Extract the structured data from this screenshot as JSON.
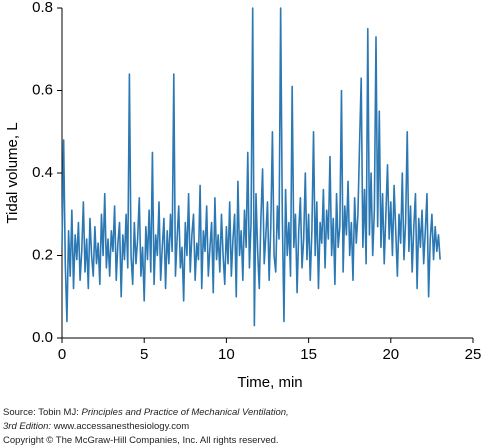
{
  "chart_data": {
    "type": "line",
    "xlabel": "Time, min",
    "ylabel": "Tidal volume, L",
    "xlim": [
      0,
      25
    ],
    "ylim": [
      0,
      0.8
    ],
    "xticks": [
      0,
      5,
      10,
      15,
      20,
      25
    ],
    "yticks": [
      {
        "value": 0,
        "label": "0.0"
      },
      0.2,
      0.4,
      0.6,
      0.8
    ],
    "series": [
      {
        "name": "Tidal volume",
        "color": "#2b78b3",
        "x": [
          0,
          0.1,
          0.2,
          0.3,
          0.4,
          0.5,
          0.6,
          0.7,
          0.8,
          0.9,
          1,
          1.1,
          1.2,
          1.3,
          1.4,
          1.5,
          1.6,
          1.7,
          1.8,
          1.9,
          2,
          2.1,
          2.2,
          2.3,
          2.4,
          2.5,
          2.6,
          2.7,
          2.8,
          2.9,
          3,
          3.1,
          3.2,
          3.3,
          3.4,
          3.5,
          3.6,
          3.7,
          3.8,
          3.9,
          4,
          4.1,
          4.2,
          4.3,
          4.4,
          4.5,
          4.6,
          4.7,
          4.8,
          4.9,
          5,
          5.1,
          5.2,
          5.3,
          5.4,
          5.5,
          5.6,
          5.7,
          5.8,
          5.9,
          6,
          6.1,
          6.2,
          6.3,
          6.4,
          6.5,
          6.6,
          6.7,
          6.8,
          6.9,
          7,
          7.1,
          7.2,
          7.3,
          7.4,
          7.5,
          7.6,
          7.7,
          7.8,
          7.9,
          8,
          8.1,
          8.2,
          8.3,
          8.4,
          8.5,
          8.6,
          8.7,
          8.8,
          8.9,
          9,
          9.1,
          9.2,
          9.3,
          9.4,
          9.5,
          9.6,
          9.7,
          9.8,
          9.9,
          10,
          10.1,
          10.2,
          10.3,
          10.4,
          10.5,
          10.6,
          10.7,
          10.8,
          10.9,
          11,
          11.1,
          11.2,
          11.3,
          11.4,
          11.5,
          11.6,
          11.7,
          11.8,
          11.9,
          12,
          12.1,
          12.2,
          12.3,
          12.4,
          12.5,
          12.6,
          12.7,
          12.8,
          12.9,
          13,
          13.1,
          13.2,
          13.3,
          13.4,
          13.5,
          13.6,
          13.7,
          13.8,
          13.9,
          14,
          14.1,
          14.2,
          14.3,
          14.4,
          14.5,
          14.6,
          14.7,
          14.8,
          14.9,
          15,
          15.1,
          15.2,
          15.3,
          15.4,
          15.5,
          15.6,
          15.7,
          15.8,
          15.9,
          16,
          16.1,
          16.2,
          16.3,
          16.4,
          16.5,
          16.6,
          16.7,
          16.8,
          16.9,
          17,
          17.1,
          17.2,
          17.3,
          17.4,
          17.5,
          17.6,
          17.7,
          17.8,
          17.9,
          18,
          18.1,
          18.2,
          18.3,
          18.4,
          18.5,
          18.6,
          18.7,
          18.8,
          18.9,
          19,
          19.1,
          19.2,
          19.3,
          19.4,
          19.5,
          19.6,
          19.7,
          19.8,
          19.9,
          20,
          20.1,
          20.2,
          20.3,
          20.4,
          20.5,
          20.6,
          20.7,
          20.8,
          20.9,
          21,
          21.1,
          21.2,
          21.3,
          21.4,
          21.5,
          21.6,
          21.7,
          21.8,
          21.9,
          22,
          22.1,
          22.2,
          22.3,
          22.4,
          22.5,
          22.6,
          22.7,
          22.8,
          22.9,
          23
        ],
        "values": [
          0.22,
          0.48,
          0.18,
          0.04,
          0.26,
          0.15,
          0.31,
          0.12,
          0.25,
          0.19,
          0.28,
          0.14,
          0.21,
          0.33,
          0.16,
          0.24,
          0.12,
          0.29,
          0.2,
          0.15,
          0.27,
          0.18,
          0.23,
          0.13,
          0.3,
          0.2,
          0.35,
          0.17,
          0.24,
          0.15,
          0.26,
          0.21,
          0.32,
          0.14,
          0.23,
          0.28,
          0.1,
          0.25,
          0.19,
          0.3,
          0.17,
          0.64,
          0.2,
          0.13,
          0.28,
          0.18,
          0.24,
          0.34,
          0.15,
          0.22,
          0.09,
          0.27,
          0.19,
          0.31,
          0.16,
          0.45,
          0.13,
          0.25,
          0.2,
          0.33,
          0.14,
          0.22,
          0.29,
          0.12,
          0.26,
          0.18,
          0.3,
          0.21,
          0.64,
          0.15,
          0.24,
          0.32,
          0.17,
          0.22,
          0.09,
          0.28,
          0.2,
          0.35,
          0.16,
          0.25,
          0.3,
          0.14,
          0.23,
          0.19,
          0.37,
          0.12,
          0.26,
          0.21,
          0.32,
          0.15,
          0.22,
          0.28,
          0.11,
          0.34,
          0.19,
          0.25,
          0.16,
          0.3,
          0.2,
          0.13,
          0.27,
          0.18,
          0.33,
          0.15,
          0.24,
          0.3,
          0.1,
          0.38,
          0.2,
          0.26,
          0.14,
          0.31,
          0.22,
          0.45,
          0.17,
          0.28,
          0.8,
          0.03,
          0.35,
          0.21,
          0.12,
          0.29,
          0.41,
          0.18,
          0.25,
          0.33,
          0.14,
          0.27,
          0.5,
          0.2,
          0.16,
          0.32,
          0.24,
          0.8,
          0.3,
          0.04,
          0.36,
          0.2,
          0.28,
          0.15,
          0.61,
          0.22,
          0.3,
          0.11,
          0.26,
          0.34,
          0.17,
          0.24,
          0.4,
          0.19,
          0.3,
          0.14,
          0.26,
          0.5,
          0.2,
          0.33,
          0.12,
          0.28,
          0.23,
          0.36,
          0.17,
          0.31,
          0.24,
          0.44,
          0.2,
          0.29,
          0.13,
          0.35,
          0.22,
          0.27,
          0.6,
          0.16,
          0.32,
          0.25,
          0.38,
          0.2,
          0.28,
          0.14,
          0.34,
          0.23,
          0.3,
          0.47,
          0.63,
          0.22,
          0.36,
          0.18,
          0.75,
          0.25,
          0.4,
          0.2,
          0.31,
          0.73,
          0.27,
          0.55,
          0.22,
          0.35,
          0.18,
          0.3,
          0.42,
          0.24,
          0.33,
          0.2,
          0.37,
          0.26,
          0.15,
          0.3,
          0.23,
          0.4,
          0.19,
          0.28,
          0.5,
          0.21,
          0.32,
          0.16,
          0.27,
          0.35,
          0.12,
          0.29,
          0.22,
          0.31,
          0.18,
          0.26,
          0.35,
          0.1,
          0.24,
          0.3,
          0.19,
          0.27,
          0.21,
          0.25,
          0.19
        ]
      }
    ]
  },
  "footer": {
    "source_prefix": "Source: Tobin MJ: ",
    "source_title": "Principles and Practice of Mechanical Ventilation,",
    "edition": "3rd Edition:",
    "url": " www.accessanesthesiology.com",
    "copyright": "Copyright © The McGraw-Hill Companies, Inc. All rights reserved."
  }
}
